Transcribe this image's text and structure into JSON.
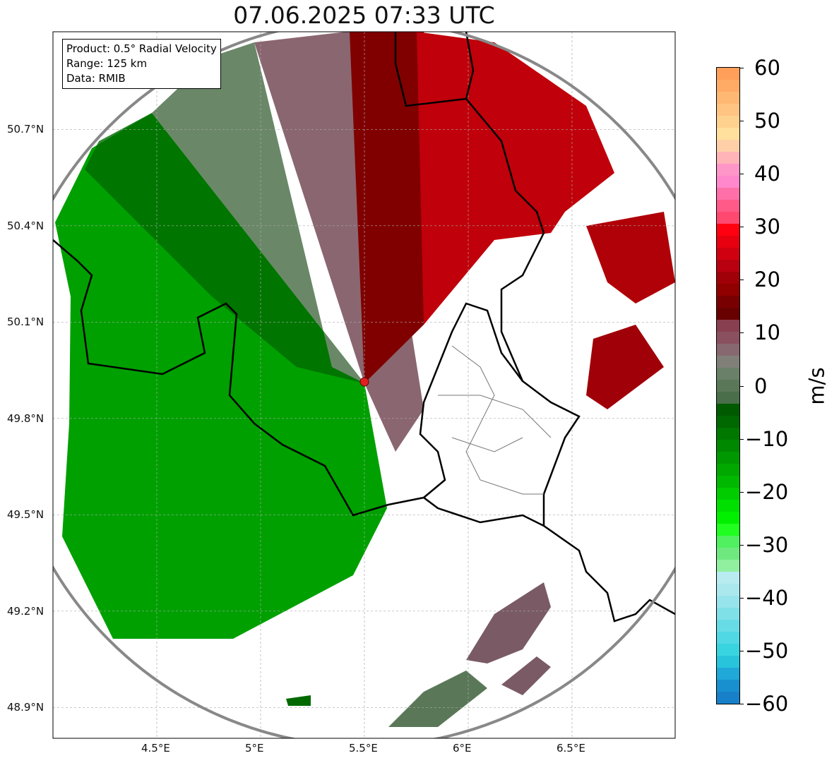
{
  "title": "07.06.2025 07:33 UTC",
  "info": {
    "product": "Product: 0.5° Radial Velocity",
    "range": "Range: 125 km",
    "data": "Data: RMIB"
  },
  "lon_ticks": [
    {
      "value": 4.5,
      "label": "4.5°E"
    },
    {
      "value": 5.0,
      "label": "5°E"
    },
    {
      "value": 5.5,
      "label": "5.5°E"
    },
    {
      "value": 6.0,
      "label": "6°E"
    },
    {
      "value": 6.5,
      "label": "6.5°E"
    }
  ],
  "lat_ticks": [
    {
      "value": 50.7,
      "label": "50.7°N"
    },
    {
      "value": 50.4,
      "label": "50.4°N"
    },
    {
      "value": 50.1,
      "label": "50.1°N"
    },
    {
      "value": 49.8,
      "label": "49.8°N"
    },
    {
      "value": 49.5,
      "label": "49.5°N"
    },
    {
      "value": 49.2,
      "label": "49.2°N"
    },
    {
      "value": 48.9,
      "label": "48.9°N"
    }
  ],
  "colorbar": {
    "unit": "m/s",
    "ticks": [
      {
        "value": 60,
        "label": "60"
      },
      {
        "value": 50,
        "label": "50"
      },
      {
        "value": 40,
        "label": "40"
      },
      {
        "value": 30,
        "label": "30"
      },
      {
        "value": 20,
        "label": "20"
      },
      {
        "value": 10,
        "label": "10"
      },
      {
        "value": 0,
        "label": "0"
      },
      {
        "value": -10,
        "label": "−10"
      },
      {
        "value": -20,
        "label": "−20"
      },
      {
        "value": -30,
        "label": "−30"
      },
      {
        "value": -40,
        "label": "−40"
      },
      {
        "value": -50,
        "label": "−50"
      },
      {
        "value": -60,
        "label": "−60"
      }
    ],
    "colors": [
      "#ff9f5a",
      "#ffab66",
      "#ffb874",
      "#ffc482",
      "#ffd18e",
      "#ffe09c",
      "#ffd0a8",
      "#ffb4b8",
      "#ff96c8",
      "#ff88cc",
      "#ff70a8",
      "#ff5a88",
      "#ff4870",
      "#ff0010",
      "#e80010",
      "#d00010",
      "#b80010",
      "#a00008",
      "#900000",
      "#780000",
      "#680000",
      "#884050",
      "#8a5060",
      "#886870",
      "#808078",
      "#6a8068",
      "#5a7858",
      "#4a6e4a",
      "#005a00",
      "#006800",
      "#007800",
      "#008800",
      "#009800",
      "#00a800",
      "#00b800",
      "#00cc00",
      "#00e000",
      "#00f000",
      "#20ff20",
      "#50f060",
      "#70e880",
      "#90f0a0",
      "#b8ecf0",
      "#aae8ee",
      "#98e4ec",
      "#80e0e8",
      "#68dce6",
      "#50d8e4",
      "#38d4e0",
      "#28c4dc",
      "#20a8d8",
      "#1890d0",
      "#1880c8"
    ]
  },
  "radar_site": {
    "lon": 5.5,
    "lat": 49.914,
    "color": "#e02020"
  }
}
